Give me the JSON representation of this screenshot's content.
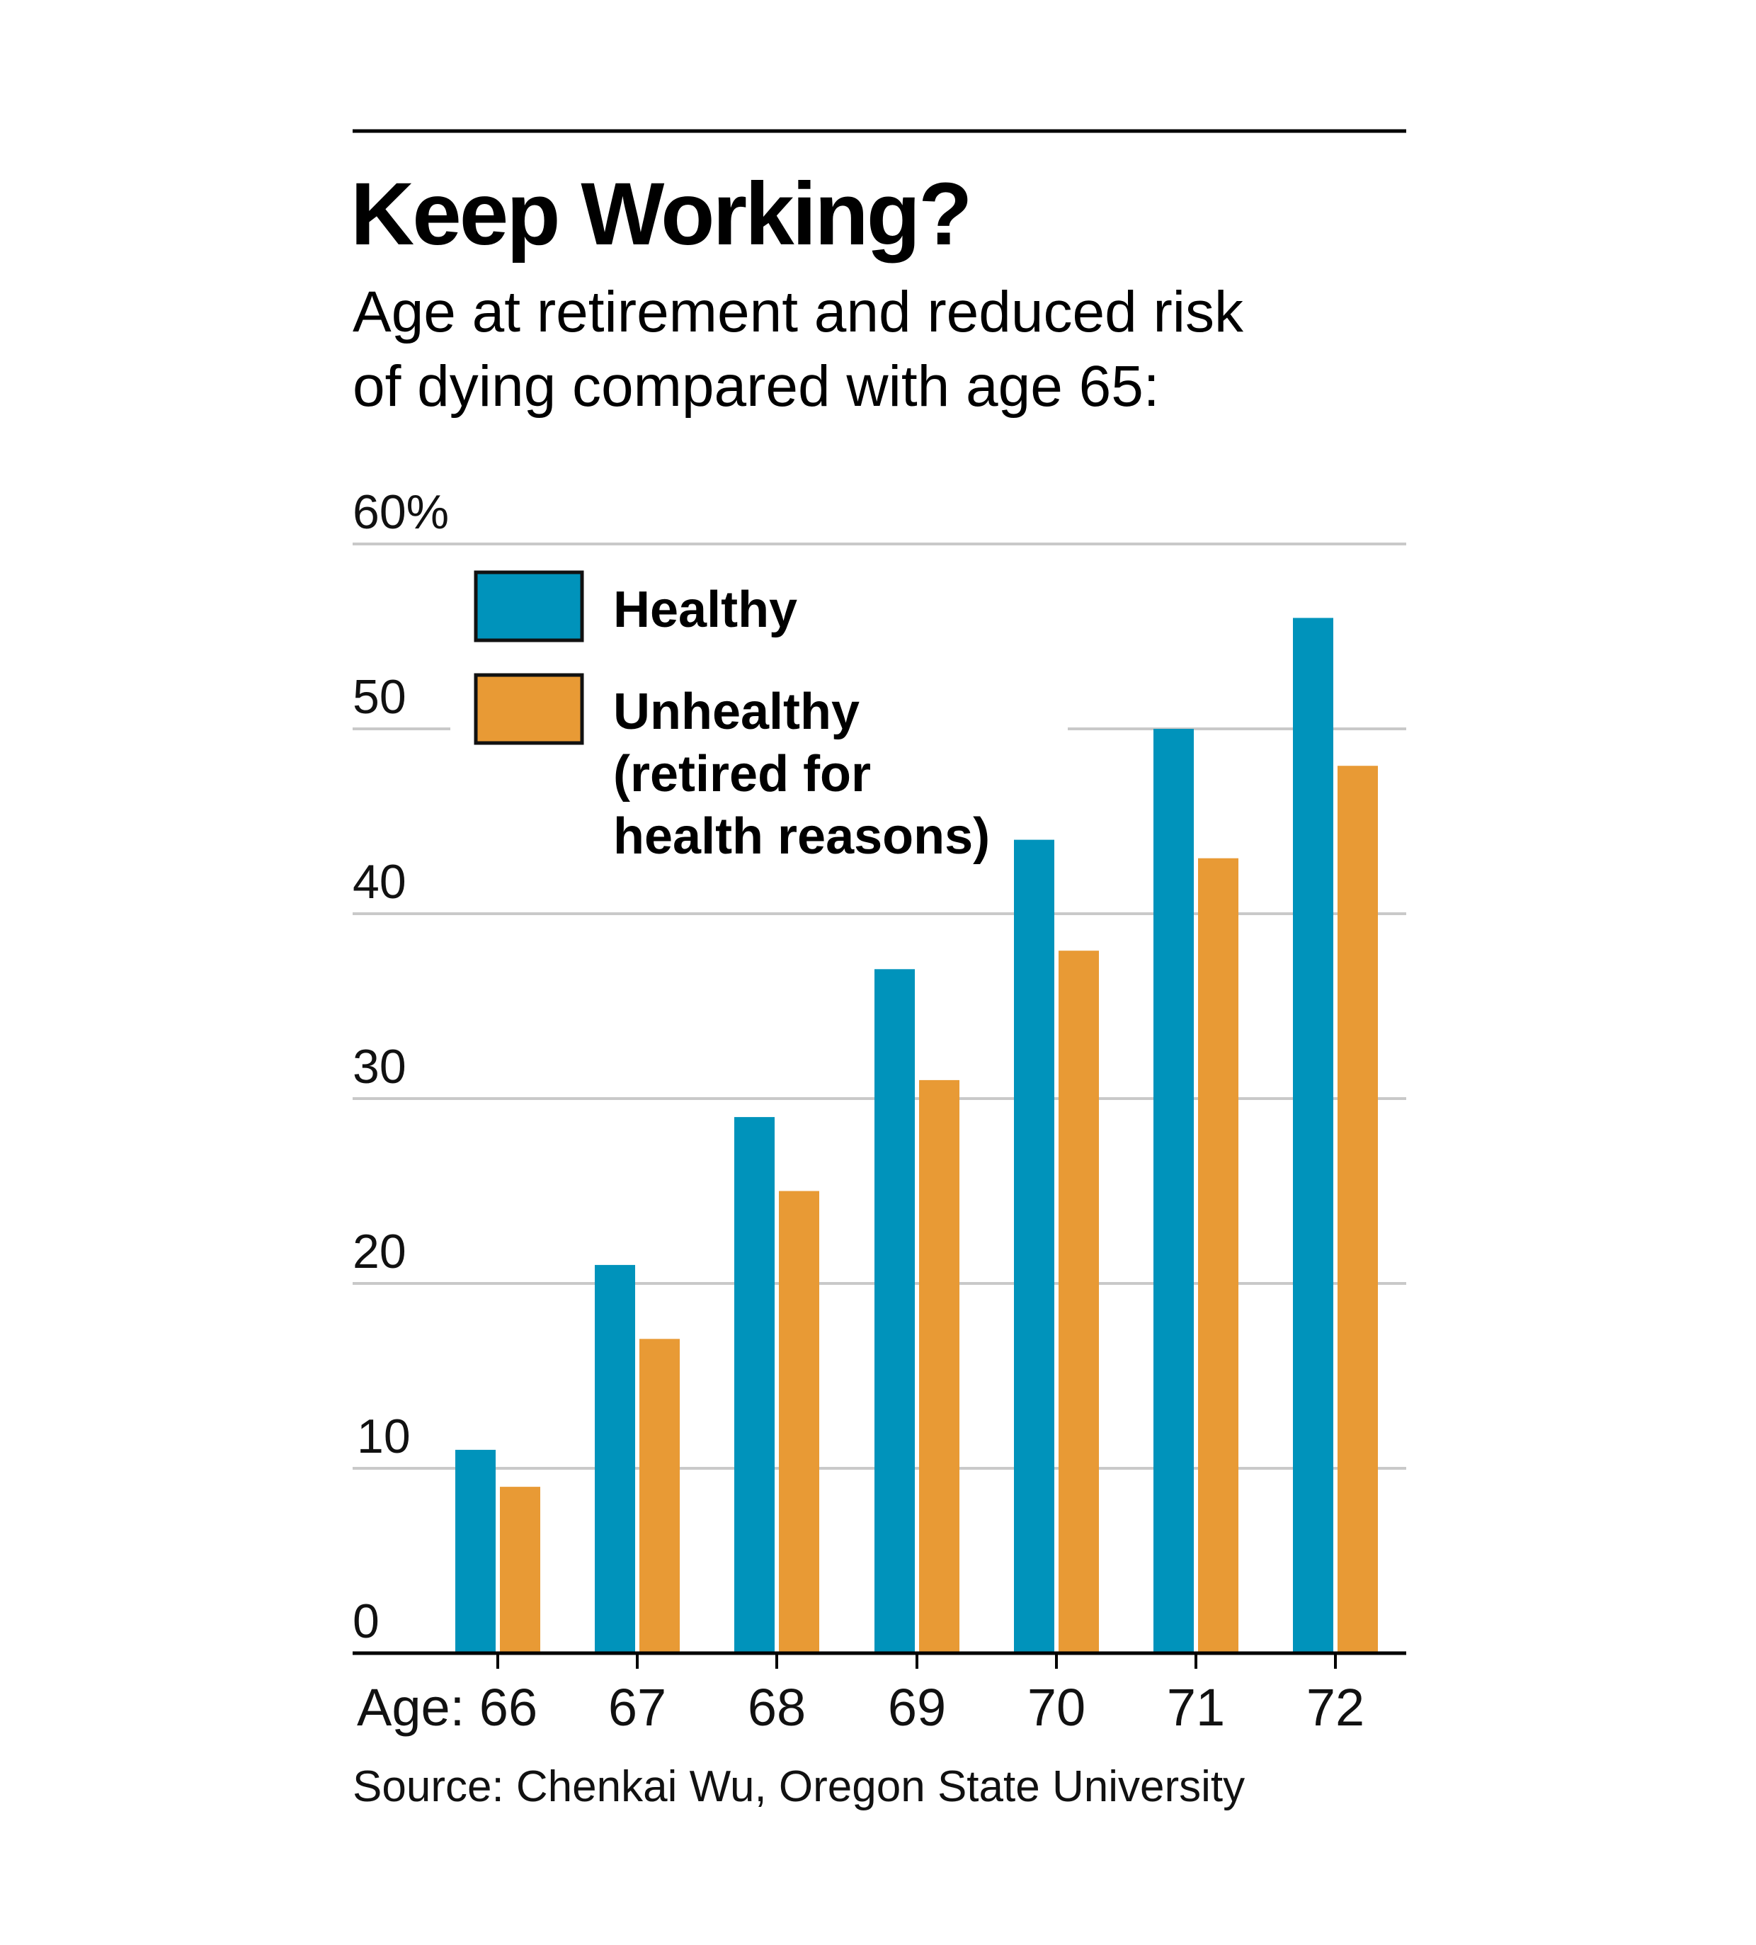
{
  "chart_data": {
    "type": "bar",
    "title": "Keep Working?",
    "subtitle_lines": [
      "Age at retirement and reduced risk",
      "of dying compared with age 65:"
    ],
    "ylim": [
      0,
      60
    ],
    "y_ticks": [
      "0",
      "10",
      "20",
      "30",
      "40",
      "50",
      "60%"
    ],
    "y_tick_values": [
      0,
      10,
      20,
      30,
      40,
      50,
      60
    ],
    "categories": [
      "Age: 66",
      "67",
      "68",
      "69",
      "70",
      "71",
      "72"
    ],
    "series": [
      {
        "name": "Healthy",
        "color": "#0093bb",
        "values": [
          11,
          21,
          29,
          37,
          44,
          50,
          56
        ]
      },
      {
        "name": "Unhealthy (retired for health reasons)",
        "color": "#e89a35",
        "values": [
          9,
          17,
          25,
          31,
          38,
          43,
          48
        ]
      }
    ],
    "legend": {
      "placement": "top-left",
      "entries": [
        {
          "lines": [
            "Healthy"
          ],
          "color": "#0093bb"
        },
        {
          "lines": [
            "Unhealthy",
            "(retired for",
            "health reasons)"
          ],
          "color": "#e89a35"
        }
      ]
    },
    "grid": true,
    "source": "Source: Chenkai Wu, Oregon State University"
  }
}
